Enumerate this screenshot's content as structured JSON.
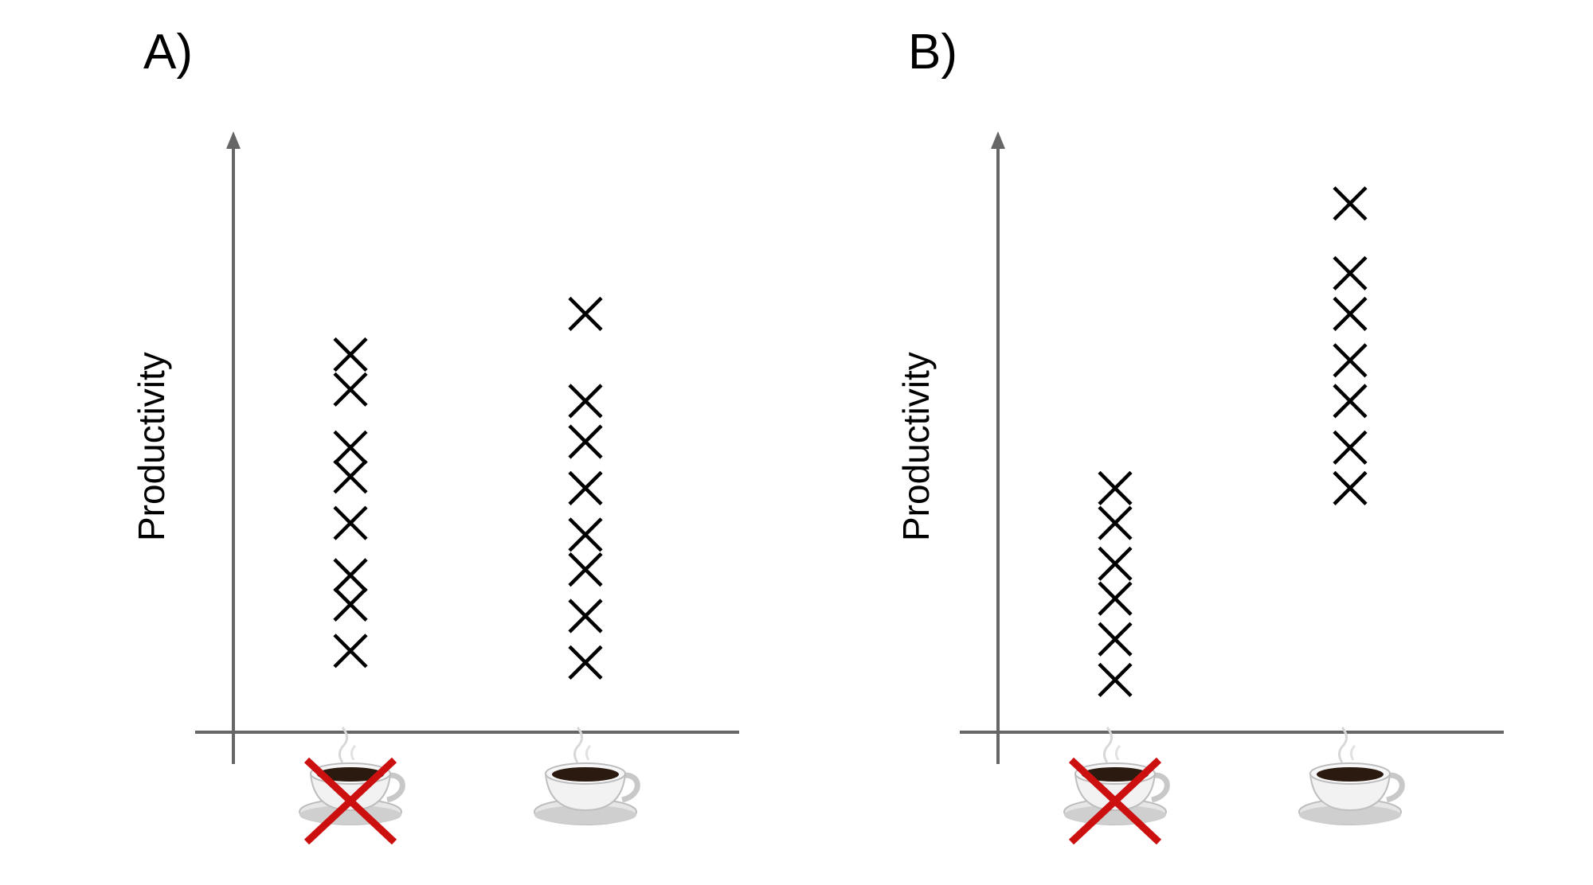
{
  "chart_data": [
    {
      "type": "scatter",
      "panel_label": "A)",
      "ylabel": "Productivity",
      "xlabel": "",
      "categories": [
        "no-coffee-icon",
        "coffee-icon"
      ],
      "grid": false,
      "legend": "none",
      "marker": "x",
      "ylim": [
        0,
        100
      ],
      "series": [
        {
          "category": "no-coffee-icon",
          "values": [
            65,
            59,
            49,
            44,
            36,
            27,
            22,
            14
          ]
        },
        {
          "category": "coffee-icon",
          "values": [
            72,
            57,
            50,
            42,
            34,
            28,
            20,
            12
          ]
        }
      ]
    },
    {
      "type": "scatter",
      "panel_label": "B)",
      "ylabel": "Productivity",
      "xlabel": "",
      "categories": [
        "no-coffee-icon",
        "coffee-icon"
      ],
      "grid": false,
      "legend": "none",
      "marker": "x",
      "ylim": [
        0,
        100
      ],
      "series": [
        {
          "category": "no-coffee-icon",
          "values": [
            42,
            36,
            29,
            23,
            16,
            9
          ]
        },
        {
          "category": "coffee-icon",
          "values": [
            91,
            79,
            72,
            64,
            57,
            49,
            42
          ]
        }
      ]
    }
  ],
  "colors": {
    "axis": "#666666",
    "marker": "#000000",
    "cross_out": "#cc1010"
  }
}
